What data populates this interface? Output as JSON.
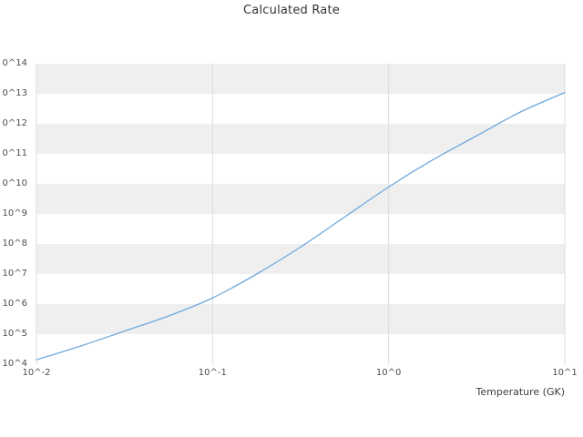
{
  "chart_data": {
    "type": "line",
    "title": "Calculated Rate",
    "xlabel": "Temperature (GK)",
    "ylabel": "",
    "x_scale": "log",
    "y_scale": "log",
    "xlim": [
      0.01,
      10
    ],
    "ylim": [
      10000.0,
      100000000000000.0
    ],
    "grid": "alternating-horizontal-bands-and-vertical-decade-gridlines",
    "legend": "none",
    "x_ticks": [
      {
        "label": "10^-2",
        "exp": -2
      },
      {
        "label": "10^-1",
        "exp": -1
      },
      {
        "label": "10^0",
        "exp": 0
      },
      {
        "label": "10^1",
        "exp": 1
      }
    ],
    "y_ticks": [
      {
        "label": "0^14",
        "exp": 14
      },
      {
        "label": "0^13",
        "exp": 13
      },
      {
        "label": "0^12",
        "exp": 12
      },
      {
        "label": "0^11",
        "exp": 11
      },
      {
        "label": "0^10",
        "exp": 10
      },
      {
        "label": "10^9",
        "exp": 9
      },
      {
        "label": "10^8",
        "exp": 8
      },
      {
        "label": "10^7",
        "exp": 7
      },
      {
        "label": "10^6",
        "exp": 6
      },
      {
        "label": "10^5",
        "exp": 5
      },
      {
        "label": "10^4",
        "exp": 4
      }
    ],
    "series": [
      {
        "name": "calculated-rate",
        "x": [
          0.01,
          0.0178,
          0.0316,
          0.0562,
          0.1,
          0.178,
          0.316,
          0.562,
          1.0,
          1.78,
          3.16,
          5.62,
          10.0
        ],
        "y": [
          14000.0,
          40000.0,
          126000.0,
          400000.0,
          1600000.0,
          10000000.0,
          79000000.0,
          790000000.0,
          7900000000.0,
          63000000000.0,
          400000000000.0,
          2500000000000.0,
          11000000000000.0
        ]
      }
    ],
    "colors": {
      "line": "#6fa8dc",
      "band": "#efefef",
      "band_alt": "#ffffff",
      "grid": "#dddddd",
      "title_text": "#333333",
      "tick_text": "#4c4c4c",
      "axis_label_text": "#3c3c3c"
    }
  }
}
